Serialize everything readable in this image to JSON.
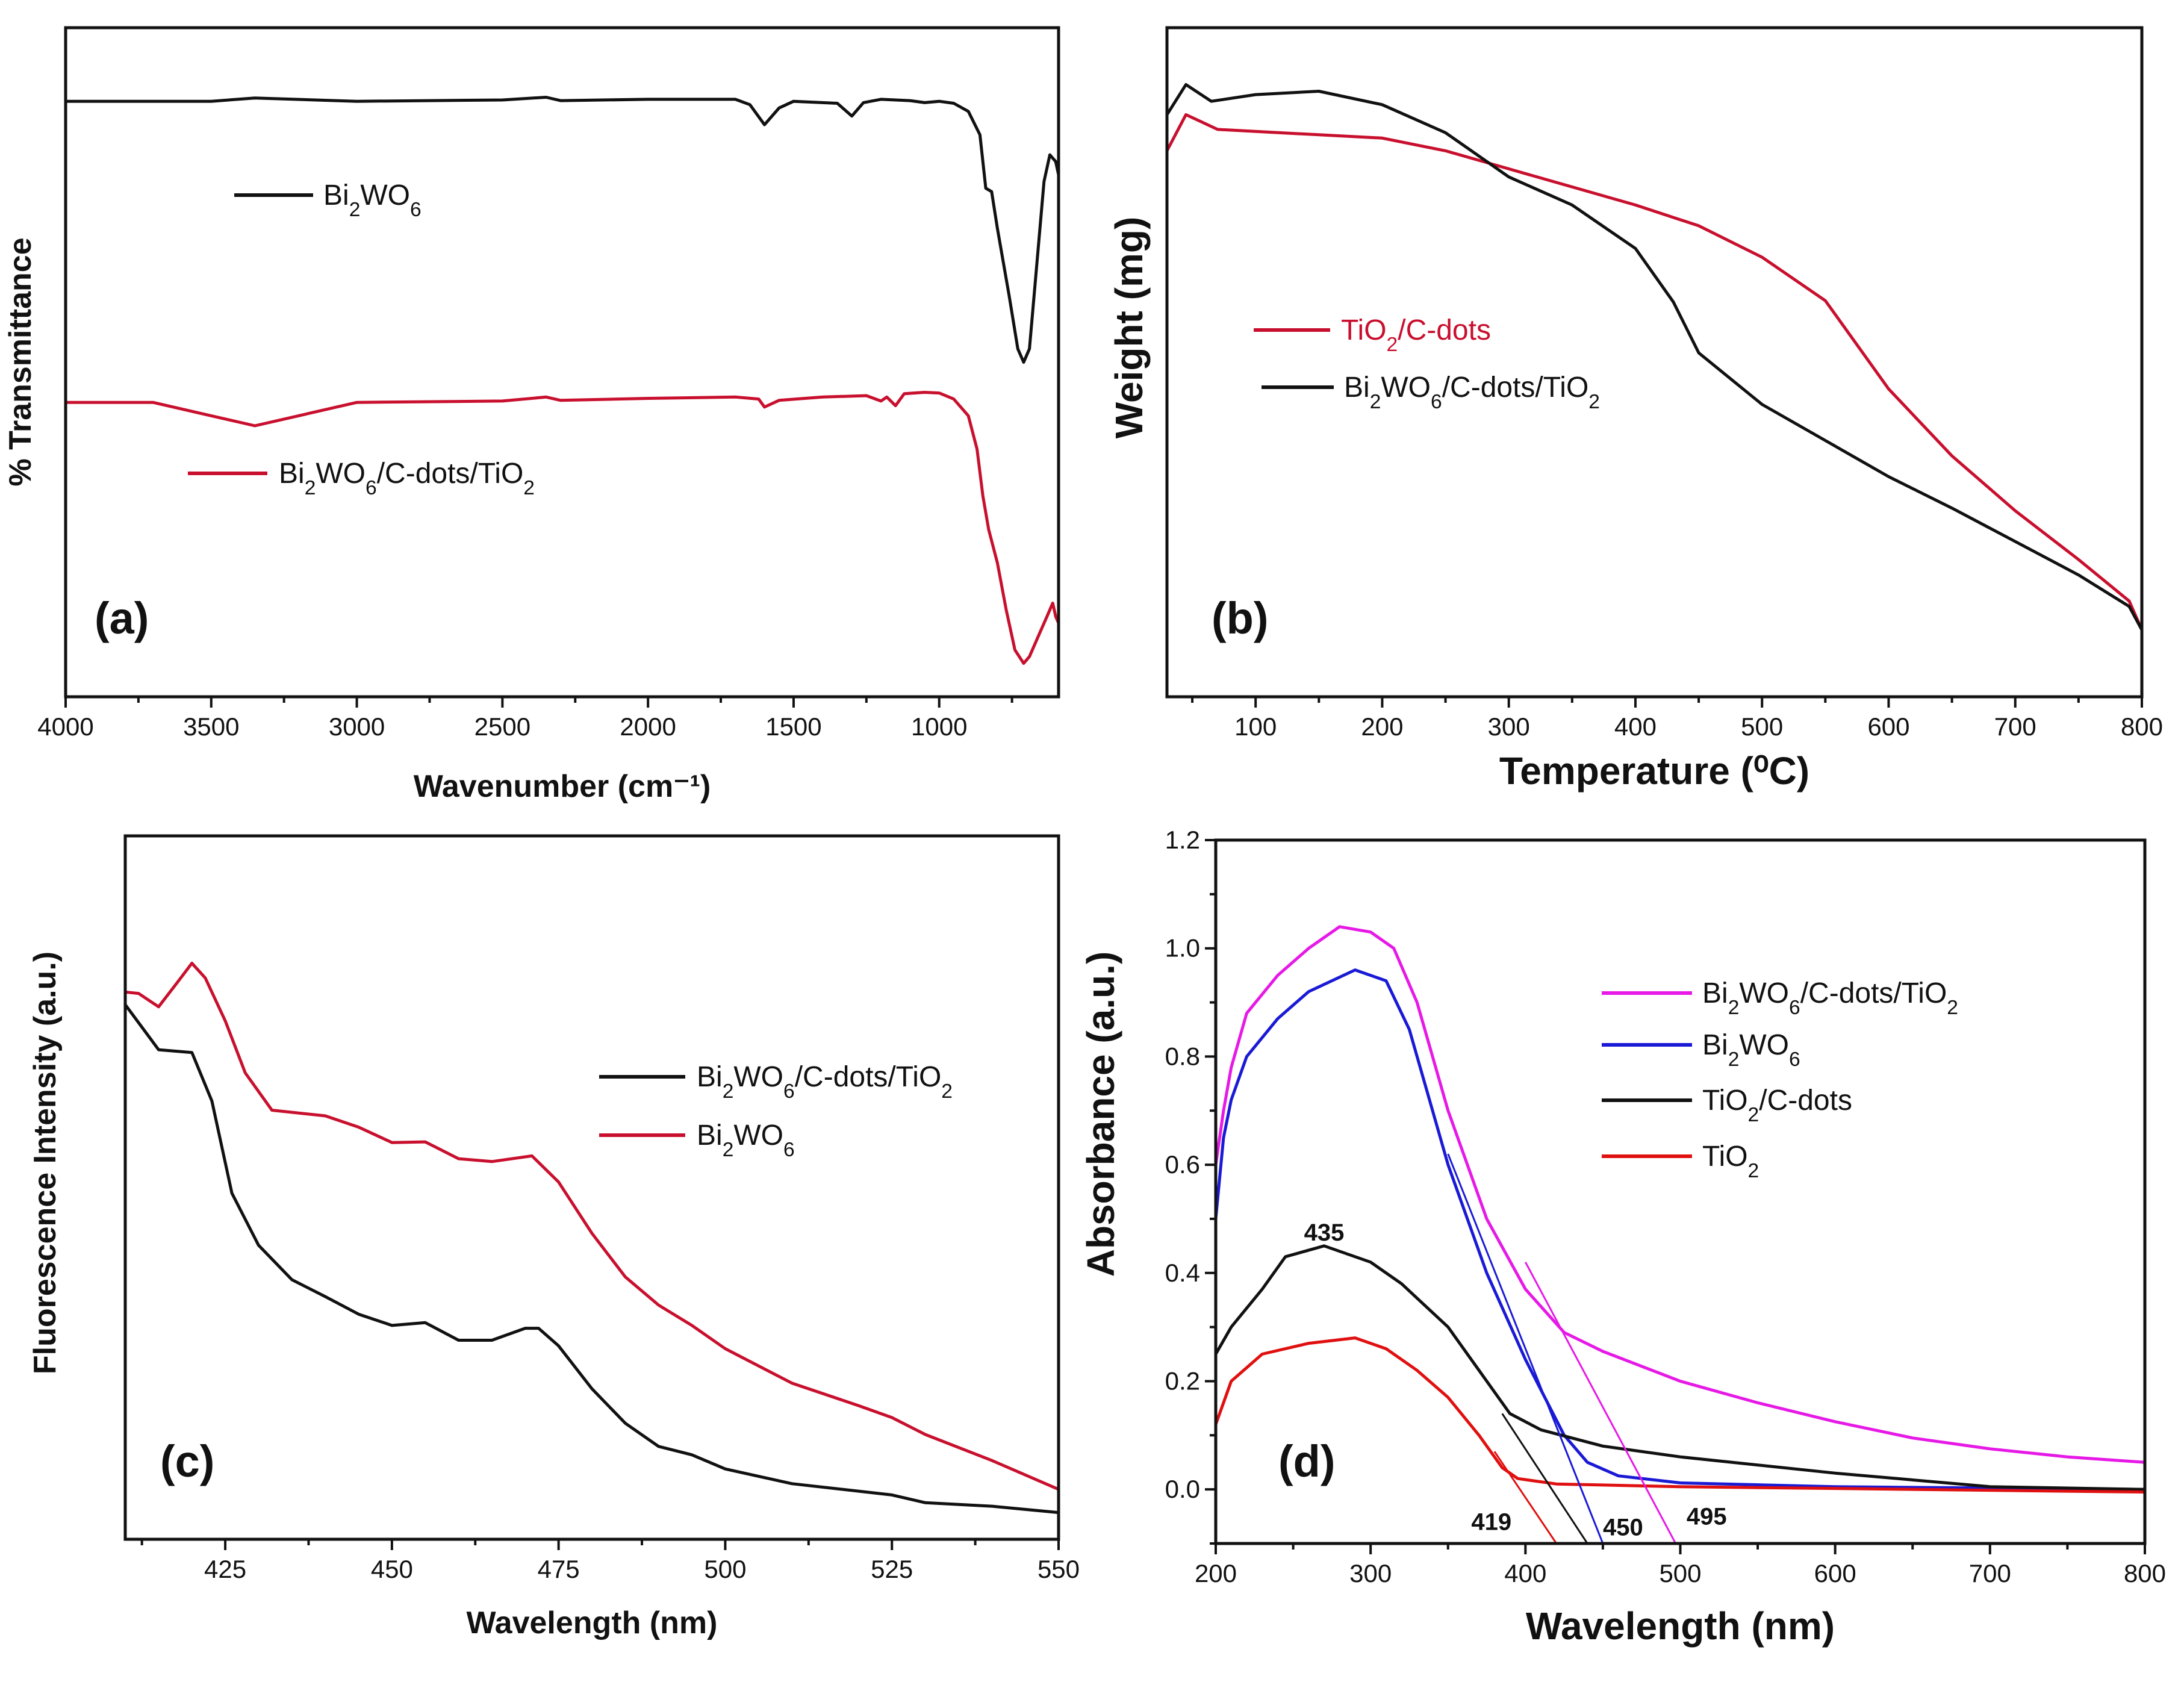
{
  "chart_data": [
    {
      "id": "a",
      "type": "line",
      "panel_label": "(a)",
      "xlabel": "Wavenumber (cm⁻¹)",
      "ylabel": "% Transmittance",
      "xlim": [
        4000,
        590
      ],
      "ylim": [
        0,
        100
      ],
      "xticks": [
        4000,
        3500,
        3000,
        2500,
        2000,
        1500,
        1000
      ],
      "yticks": [],
      "legend_placement": "left",
      "series": [
        {
          "name": "Bi2WO6",
          "color": "#111111",
          "points": [
            [
              4000,
              89
            ],
            [
              3500,
              89
            ],
            [
              3350,
              89.5
            ],
            [
              3000,
              89
            ],
            [
              2500,
              89.2
            ],
            [
              2350,
              89.6
            ],
            [
              2300,
              89.1
            ],
            [
              2000,
              89.3
            ],
            [
              1700,
              89.3
            ],
            [
              1650,
              88.5
            ],
            [
              1600,
              85.5
            ],
            [
              1550,
              88
            ],
            [
              1500,
              89
            ],
            [
              1350,
              88.7
            ],
            [
              1300,
              86.8
            ],
            [
              1260,
              88.8
            ],
            [
              1200,
              89.3
            ],
            [
              1100,
              89.1
            ],
            [
              1050,
              88.8
            ],
            [
              1000,
              89
            ],
            [
              950,
              88.7
            ],
            [
              900,
              87.5
            ],
            [
              860,
              84
            ],
            [
              840,
              76
            ],
            [
              820,
              75.5
            ],
            [
              800,
              70
            ],
            [
              760,
              60
            ],
            [
              730,
              52
            ],
            [
              710,
              50
            ],
            [
              690,
              52
            ],
            [
              670,
              62
            ],
            [
              640,
              77
            ],
            [
              620,
              81
            ],
            [
              600,
              80
            ],
            [
              590,
              78
            ]
          ]
        },
        {
          "name": "Bi2WO6/C-dots/TiO2",
          "color": "#c8102e",
          "points": [
            [
              4000,
              44
            ],
            [
              3700,
              44
            ],
            [
              3500,
              42
            ],
            [
              3350,
              40.5
            ],
            [
              3200,
              42
            ],
            [
              3000,
              44
            ],
            [
              2500,
              44.2
            ],
            [
              2350,
              44.8
            ],
            [
              2300,
              44.3
            ],
            [
              2000,
              44.6
            ],
            [
              1700,
              44.8
            ],
            [
              1620,
              44.5
            ],
            [
              1600,
              43.3
            ],
            [
              1550,
              44.3
            ],
            [
              1400,
              44.8
            ],
            [
              1250,
              45
            ],
            [
              1200,
              44.2
            ],
            [
              1180,
              44.8
            ],
            [
              1150,
              43.5
            ],
            [
              1120,
              45.3
            ],
            [
              1050,
              45.5
            ],
            [
              1000,
              45.4
            ],
            [
              950,
              44.5
            ],
            [
              900,
              42
            ],
            [
              870,
              37
            ],
            [
              850,
              30
            ],
            [
              830,
              25
            ],
            [
              800,
              20
            ],
            [
              770,
              13
            ],
            [
              740,
              7
            ],
            [
              710,
              5
            ],
            [
              690,
              6
            ],
            [
              660,
              9
            ],
            [
              630,
              12
            ],
            [
              610,
              14
            ],
            [
              600,
              12
            ],
            [
              590,
              11
            ]
          ]
        }
      ]
    },
    {
      "id": "b",
      "type": "line",
      "panel_label": "(b)",
      "xlabel": "Temperature (⁰C)",
      "ylabel": "Weight (mg)",
      "xlim": [
        30,
        800
      ],
      "ylim": [
        0,
        100
      ],
      "xticks": [
        100,
        200,
        300,
        400,
        500,
        600,
        700,
        800
      ],
      "yticks": [],
      "legend_placement": "center-left",
      "series": [
        {
          "name": "TiO2/C-dots",
          "color": "#c8102e",
          "points": [
            [
              30,
              81.6
            ],
            [
              45,
              87
            ],
            [
              70,
              84.8
            ],
            [
              150,
              84
            ],
            [
              200,
              83.5
            ],
            [
              250,
              81.6
            ],
            [
              300,
              78.9
            ],
            [
              350,
              76.2
            ],
            [
              400,
              73.5
            ],
            [
              450,
              70.4
            ],
            [
              500,
              65.7
            ],
            [
              550,
              59.2
            ],
            [
              600,
              46
            ],
            [
              650,
              36
            ],
            [
              700,
              27.8
            ],
            [
              750,
              20.5
            ],
            [
              790,
              14.3
            ],
            [
              800,
              10
            ]
          ]
        },
        {
          "name": "Bi2WO6/C-dots/TiO2",
          "color": "#111111",
          "points": [
            [
              30,
              87
            ],
            [
              45,
              91.5
            ],
            [
              65,
              89
            ],
            [
              100,
              90
            ],
            [
              150,
              90.5
            ],
            [
              200,
              88.5
            ],
            [
              250,
              84.3
            ],
            [
              300,
              77.7
            ],
            [
              350,
              73.5
            ],
            [
              400,
              67
            ],
            [
              430,
              59
            ],
            [
              450,
              51.4
            ],
            [
              500,
              43.7
            ],
            [
              550,
              38.3
            ],
            [
              600,
              32.9
            ],
            [
              650,
              28.2
            ],
            [
              700,
              23.2
            ],
            [
              750,
              18.2
            ],
            [
              790,
              13.5
            ],
            [
              800,
              10
            ]
          ]
        }
      ]
    },
    {
      "id": "c",
      "type": "line",
      "panel_label": "(c)",
      "xlabel": "Wavelength (nm)",
      "ylabel": "Fluorescence Intensity (a.u.)",
      "xlim": [
        410,
        550
      ],
      "ylim": [
        0,
        100
      ],
      "xticks": [
        425,
        450,
        475,
        500,
        525,
        550
      ],
      "yticks": [],
      "legend_placement": "center-right",
      "series": [
        {
          "name": "Bi2WO6/C-dots/TiO2",
          "color": "#111111",
          "points": [
            [
              410,
              76
            ],
            [
              415,
              69.6
            ],
            [
              420,
              69.2
            ],
            [
              423,
              62.3
            ],
            [
              426,
              49.2
            ],
            [
              430,
              41.8
            ],
            [
              435,
              36.9
            ],
            [
              440,
              34.5
            ],
            [
              445,
              32
            ],
            [
              450,
              30.4
            ],
            [
              455,
              30.8
            ],
            [
              460,
              28.3
            ],
            [
              465,
              28.3
            ],
            [
              470,
              30
            ],
            [
              472,
              30
            ],
            [
              475,
              27.5
            ],
            [
              480,
              21.4
            ],
            [
              485,
              16.5
            ],
            [
              490,
              13.2
            ],
            [
              495,
              12
            ],
            [
              500,
              10
            ],
            [
              510,
              7.9
            ],
            [
              525,
              6.3
            ],
            [
              530,
              5.2
            ],
            [
              540,
              4.7
            ],
            [
              550,
              3.8
            ]
          ]
        },
        {
          "name": "Bi2WO6",
          "color": "#c8102e",
          "points": [
            [
              410,
              77.8
            ],
            [
              412,
              77.6
            ],
            [
              415,
              75.7
            ],
            [
              418,
              79.4
            ],
            [
              420,
              81.9
            ],
            [
              422,
              79.8
            ],
            [
              425,
              73.7
            ],
            [
              428,
              66.3
            ],
            [
              432,
              61
            ],
            [
              440,
              60.2
            ],
            [
              445,
              58.6
            ],
            [
              450,
              56.4
            ],
            [
              455,
              56.5
            ],
            [
              460,
              54.1
            ],
            [
              465,
              53.7
            ],
            [
              471,
              54.5
            ],
            [
              475,
              50.8
            ],
            [
              480,
              43.5
            ],
            [
              485,
              37.3
            ],
            [
              490,
              33.3
            ],
            [
              495,
              30.4
            ],
            [
              500,
              27.1
            ],
            [
              510,
              22.2
            ],
            [
              520,
              19
            ],
            [
              525,
              17.3
            ],
            [
              530,
              14.9
            ],
            [
              540,
              11.2
            ],
            [
              550,
              7.1
            ]
          ]
        }
      ]
    },
    {
      "id": "d",
      "type": "line",
      "panel_label": "(d)",
      "xlabel": "Wavelength (nm)",
      "ylabel": "Absorbance (a.u.)",
      "xlim": [
        200,
        800
      ],
      "ylim": [
        -0.1,
        1.2
      ],
      "xticks": [
        200,
        300,
        400,
        500,
        600,
        700,
        800
      ],
      "yticks": [
        0.0,
        0.2,
        0.4,
        0.6,
        0.8,
        1.0,
        1.2
      ],
      "ytick_labels": [
        "0.0",
        "0.2",
        "0.4",
        "0.6",
        "0.8",
        "1.0",
        "1.2"
      ],
      "legend_placement": "top-right",
      "series": [
        {
          "name": "Bi2WO6/C-dots/TiO2",
          "color": "#e619e6",
          "points": [
            [
              200,
              0.6
            ],
            [
              205,
              0.7
            ],
            [
              210,
              0.78
            ],
            [
              220,
              0.88
            ],
            [
              240,
              0.95
            ],
            [
              260,
              1.0
            ],
            [
              280,
              1.04
            ],
            [
              300,
              1.03
            ],
            [
              315,
              1.0
            ],
            [
              330,
              0.9
            ],
            [
              350,
              0.7
            ],
            [
              375,
              0.5
            ],
            [
              400,
              0.37
            ],
            [
              425,
              0.29
            ],
            [
              450,
              0.255
            ],
            [
              500,
              0.2
            ],
            [
              550,
              0.16
            ],
            [
              600,
              0.125
            ],
            [
              650,
              0.095
            ],
            [
              700,
              0.075
            ],
            [
              750,
              0.06
            ],
            [
              800,
              0.05
            ]
          ]
        },
        {
          "name": "Bi2WO6",
          "color": "#1a1ad6",
          "points": [
            [
              200,
              0.5
            ],
            [
              205,
              0.65
            ],
            [
              210,
              0.72
            ],
            [
              220,
              0.8
            ],
            [
              240,
              0.87
            ],
            [
              260,
              0.92
            ],
            [
              290,
              0.96
            ],
            [
              310,
              0.94
            ],
            [
              325,
              0.85
            ],
            [
              350,
              0.6
            ],
            [
              375,
              0.4
            ],
            [
              400,
              0.24
            ],
            [
              425,
              0.1
            ],
            [
              440,
              0.05
            ],
            [
              460,
              0.025
            ],
            [
              500,
              0.012
            ],
            [
              600,
              0.005
            ],
            [
              800,
              0.0
            ]
          ]
        },
        {
          "name": "TiO2/C-dots",
          "color": "#111111",
          "points": [
            [
              200,
              0.25
            ],
            [
              210,
              0.3
            ],
            [
              230,
              0.37
            ],
            [
              245,
              0.43
            ],
            [
              270,
              0.45
            ],
            [
              300,
              0.42
            ],
            [
              320,
              0.38
            ],
            [
              350,
              0.3
            ],
            [
              370,
              0.22
            ],
            [
              390,
              0.14
            ],
            [
              410,
              0.11
            ],
            [
              450,
              0.08
            ],
            [
              500,
              0.06
            ],
            [
              600,
              0.03
            ],
            [
              700,
              0.005
            ],
            [
              800,
              0.0
            ]
          ]
        },
        {
          "name": "TiO2",
          "color": "#e01010",
          "points": [
            [
              200,
              0.12
            ],
            [
              210,
              0.2
            ],
            [
              230,
              0.25
            ],
            [
              260,
              0.27
            ],
            [
              290,
              0.28
            ],
            [
              310,
              0.26
            ],
            [
              330,
              0.22
            ],
            [
              350,
              0.17
            ],
            [
              370,
              0.1
            ],
            [
              385,
              0.04
            ],
            [
              395,
              0.02
            ],
            [
              420,
              0.01
            ],
            [
              500,
              0.005
            ],
            [
              800,
              -0.005
            ]
          ]
        }
      ],
      "tangent_lines": [
        {
          "color": "#e01010",
          "from": [
            380,
            0.07
          ],
          "to": [
            420,
            -0.1
          ]
        },
        {
          "color": "#111111",
          "from": [
            385,
            0.14
          ],
          "to": [
            440,
            -0.1
          ]
        },
        {
          "color": "#1a1ad6",
          "from": [
            350,
            0.62
          ],
          "to": [
            450,
            -0.1
          ]
        },
        {
          "color": "#e619e6",
          "from": [
            400,
            0.42
          ],
          "to": [
            497,
            -0.1
          ]
        }
      ],
      "annotations": [
        {
          "text": "435",
          "x": 270,
          "y": 0.46
        },
        {
          "text": "419",
          "x": 378,
          "y": -0.075
        },
        {
          "text": "450",
          "x": 463,
          "y": -0.085
        },
        {
          "text": "495",
          "x": 517,
          "y": -0.065
        }
      ]
    }
  ]
}
